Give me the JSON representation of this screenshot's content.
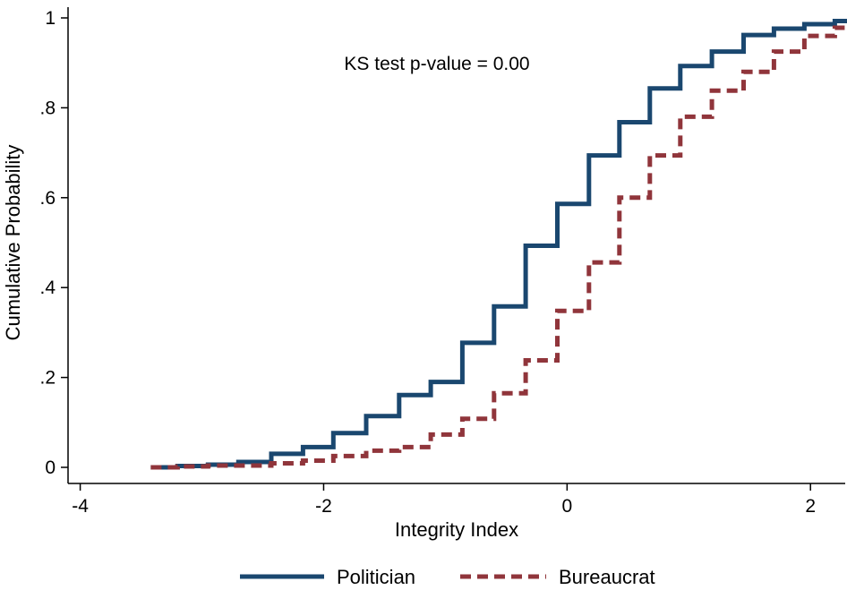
{
  "chart_data": {
    "type": "line",
    "step": true,
    "xlabel": "Integrity Index",
    "ylabel": "Cumulative Probability",
    "xlim": [
      -4.1,
      2.3
    ],
    "ylim": [
      0,
      1
    ],
    "xticks": [
      {
        "value": -4,
        "label": "-4"
      },
      {
        "value": -2,
        "label": "-2"
      },
      {
        "value": 0,
        "label": "0"
      },
      {
        "value": 2,
        "label": "2"
      }
    ],
    "yticks": [
      {
        "value": 0,
        "label": "0"
      },
      {
        "value": 0.2,
        "label": ".2"
      },
      {
        "value": 0.4,
        "label": ".4"
      },
      {
        "value": 0.6,
        "label": ".6"
      },
      {
        "value": 0.8,
        "label": ".8"
      },
      {
        "value": 1,
        "label": "1"
      }
    ],
    "grid": false,
    "legend_position": "bottom",
    "annotation": "KS test p-value = 0.00",
    "series": [
      {
        "name": "Politician",
        "color": "#1a476f",
        "dash": "solid",
        "x": [
          -3.42,
          -3.2,
          -2.95,
          -2.7,
          -2.43,
          -2.17,
          -1.92,
          -1.65,
          -1.38,
          -1.12,
          -0.86,
          -0.6,
          -0.34,
          -0.08,
          0.18,
          0.43,
          0.68,
          0.93,
          1.19,
          1.45,
          1.7,
          1.95,
          2.2
        ],
        "y": [
          0.0,
          0.003,
          0.006,
          0.012,
          0.03,
          0.045,
          0.076,
          0.114,
          0.161,
          0.19,
          0.277,
          0.358,
          0.493,
          0.586,
          0.694,
          0.768,
          0.843,
          0.893,
          0.925,
          0.962,
          0.976,
          0.986,
          0.993
        ]
      },
      {
        "name": "Bureaucrat",
        "color": "#90353b",
        "dash": "dashed",
        "x": [
          -3.42,
          -3.2,
          -2.95,
          -2.43,
          -2.17,
          -1.92,
          -1.65,
          -1.38,
          -1.12,
          -0.86,
          -0.6,
          -0.34,
          -0.08,
          0.18,
          0.43,
          0.68,
          0.93,
          1.19,
          1.45,
          1.7,
          1.95,
          2.2
        ],
        "y": [
          0.0,
          0.002,
          0.004,
          0.009,
          0.015,
          0.025,
          0.037,
          0.045,
          0.073,
          0.108,
          0.165,
          0.238,
          0.348,
          0.456,
          0.6,
          0.694,
          0.78,
          0.838,
          0.88,
          0.925,
          0.96,
          0.978
        ]
      }
    ]
  }
}
